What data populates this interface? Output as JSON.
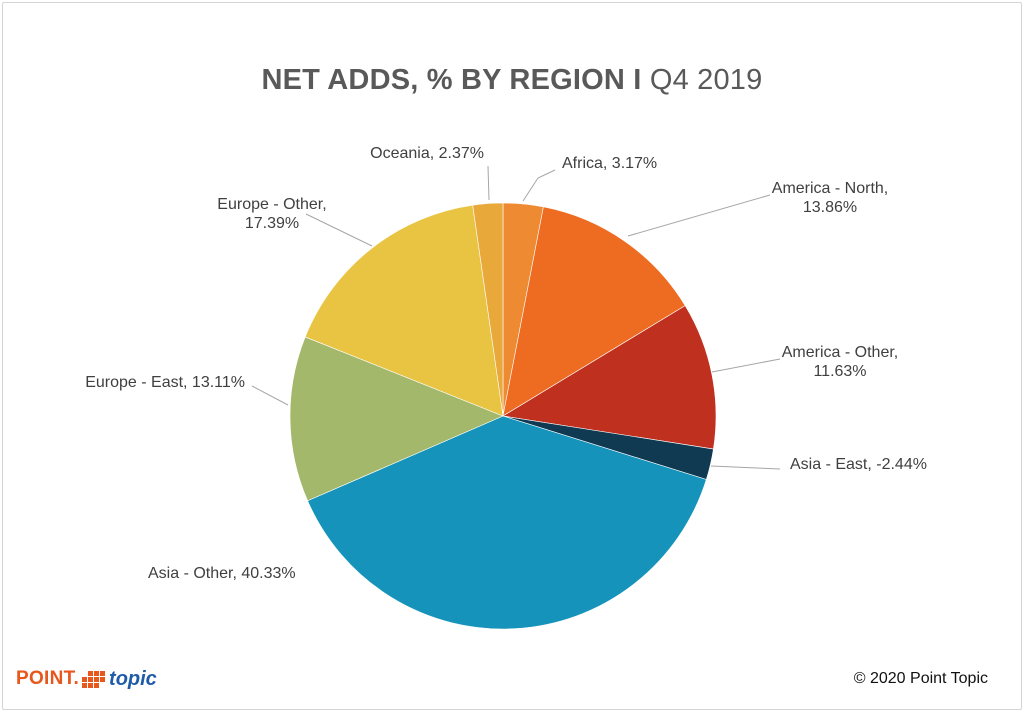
{
  "title": {
    "main": "NET ADDS, % BY REGION I",
    "sub": "Q4 2019"
  },
  "footer": {
    "logo_word1": "POINT.",
    "logo_word2": "topic",
    "copyright": "© 2020 Point Topic"
  },
  "chart_data": {
    "type": "pie",
    "title": "NET ADDS, % BY REGION I Q4 2019",
    "start_angle_deg": 0,
    "direction": "clockwise",
    "slices": [
      {
        "name": "Africa",
        "value": 3.17,
        "label": "Africa, 3.17%",
        "color": "#EE8A32"
      },
      {
        "name": "America - North",
        "value": 13.86,
        "label": "America - North, 13.86%",
        "color": "#EE6C22"
      },
      {
        "name": "America - Other",
        "value": 11.63,
        "label": "America - Other, 11.63%",
        "color": "#C0301F"
      },
      {
        "name": "Asia - East",
        "value": -2.44,
        "label": "Asia - East, -2.44%",
        "color": "#0F3A52"
      },
      {
        "name": "Asia - Other",
        "value": 40.33,
        "label": "Asia - Other, 40.33%",
        "color": "#1693BA"
      },
      {
        "name": "Europe - East",
        "value": 13.11,
        "label": "Europe - East, 13.11%",
        "color": "#A3B86B"
      },
      {
        "name": "Europe - Other",
        "value": 17.39,
        "label": "Europe - Other, 17.39%",
        "color": "#E8C442"
      },
      {
        "name": "Oceania",
        "value": 2.37,
        "label": "Oceania, 2.37%",
        "color": "#E8A93A"
      }
    ]
  }
}
